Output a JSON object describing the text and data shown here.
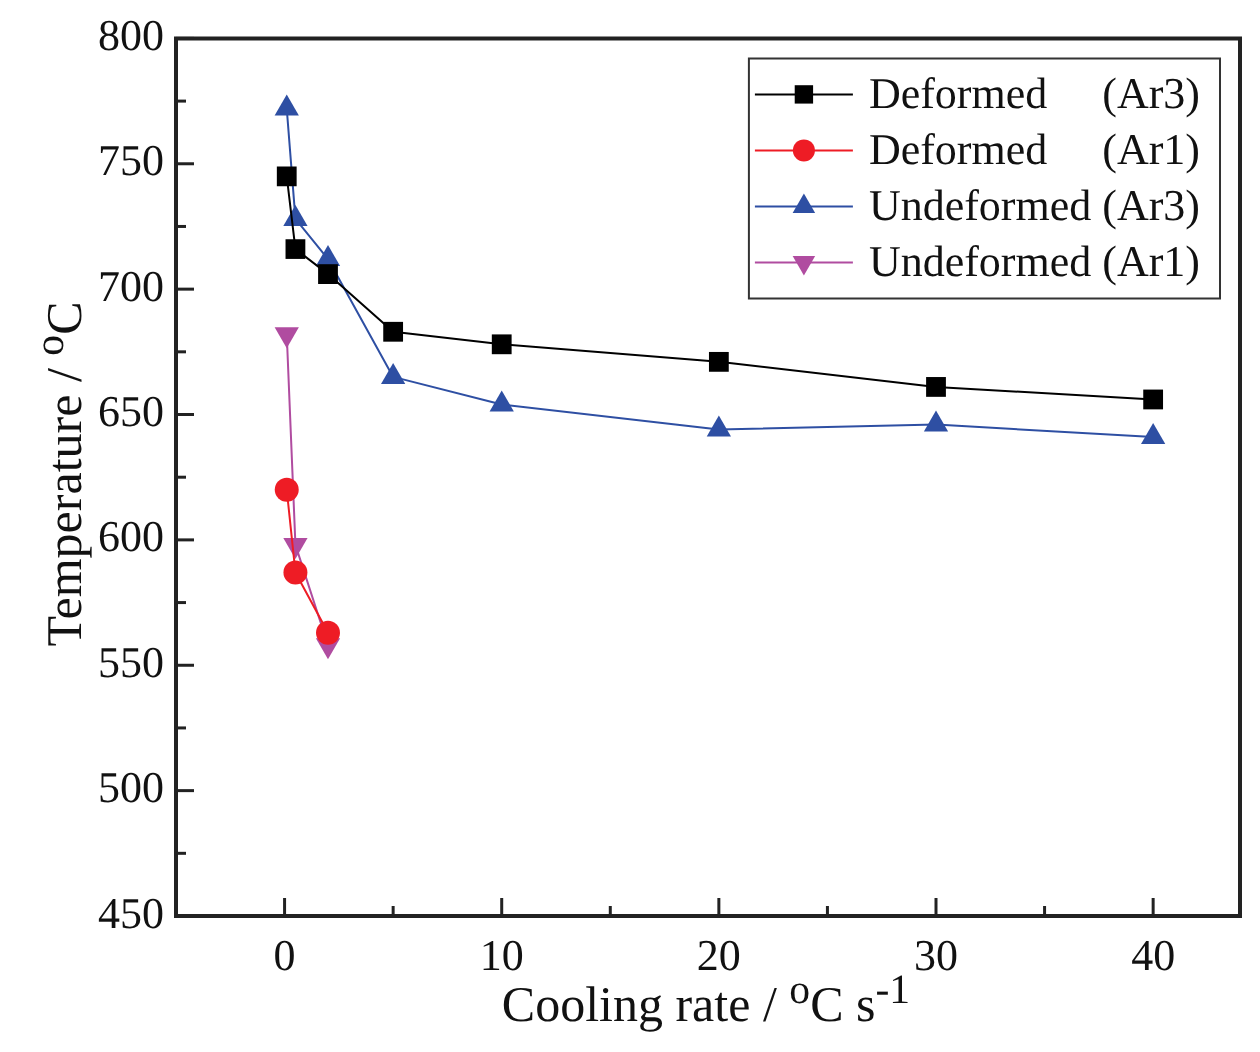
{
  "chart_data": {
    "type": "line",
    "xlabel": "Cooling rate / $^{o}$C s$^{-1}$",
    "ylabel": "Temperature / $^{o}$C",
    "series": [
      {
        "name": "Deformed     (Ar3)",
        "color": "#000000",
        "marker": "square",
        "x": [
          0.1,
          0.5,
          2,
          5,
          10,
          20,
          30,
          40
        ],
        "values": [
          745,
          716,
          706,
          683,
          678,
          671,
          661,
          656
        ]
      },
      {
        "name": "Deformed     (Ar1)",
        "color": "#ee1c25",
        "marker": "circle",
        "x": [
          0.1,
          0.5,
          2
        ],
        "values": [
          620,
          587,
          563
        ]
      },
      {
        "name": "Undeformed (Ar3)",
        "color": "#2e4fa3",
        "marker": "triangle",
        "x": [
          0.1,
          0.5,
          2,
          5,
          10,
          20,
          30,
          40
        ],
        "values": [
          772,
          728,
          712,
          665,
          654,
          644,
          646,
          641
        ]
      },
      {
        "name": "Undeformed (Ar1)",
        "color": "#b04ca0",
        "marker": "triangle-down",
        "x": [
          0.1,
          0.5,
          2
        ],
        "values": [
          682,
          598,
          558
        ]
      }
    ],
    "xlim": [
      -5,
      44
    ],
    "xticks": [
      0,
      {
        "value": 5,
        "label": null
      },
      10,
      {
        "value": 15,
        "label": null
      },
      20,
      {
        "value": 25,
        "label": null
      },
      30,
      {
        "value": 35,
        "label": null
      },
      40
    ],
    "ylim": [
      450,
      800
    ],
    "yticks": [
      450,
      {
        "value": 475,
        "label": null
      },
      500,
      {
        "value": 525,
        "label": null
      },
      550,
      {
        "value": 575,
        "label": null
      },
      600,
      {
        "value": 625,
        "label": null
      },
      650,
      {
        "value": 675,
        "label": null
      },
      700,
      {
        "value": 725,
        "label": null
      },
      750,
      {
        "value": 775,
        "label": null
      },
      800
    ],
    "grid": false,
    "legend": "top right",
    "line_style": "solid"
  }
}
